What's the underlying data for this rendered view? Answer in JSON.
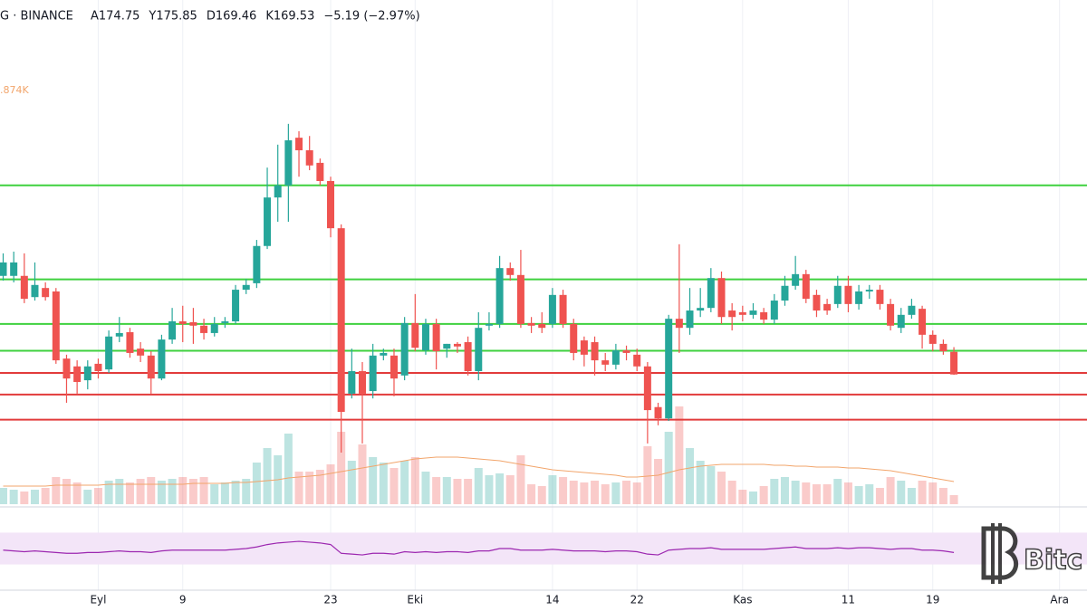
{
  "chart_data": {
    "type": "candlestick",
    "title": "G · BINANCE",
    "stats": [
      "A174.75",
      "Y175.85",
      "D169.46",
      "K169.53",
      "−5.19 (−2.97%)"
    ],
    "volume_label": ".874K",
    "watermark": "Bitc",
    "up_color": "#26a69a",
    "down_color": "#ef5350",
    "ylim": [
      140,
      256
    ],
    "xlim": [
      -0.3,
      102.6
    ],
    "xticks": [
      {
        "value": 9,
        "label": "Eyl"
      },
      {
        "value": 17,
        "label": "9"
      },
      {
        "value": 31,
        "label": "23"
      },
      {
        "value": 39,
        "label": "Eki"
      },
      {
        "value": 52,
        "label": "14"
      },
      {
        "value": 60,
        "label": "22"
      },
      {
        "value": 70,
        "label": "Kas"
      },
      {
        "value": 80,
        "label": "11"
      },
      {
        "value": 88,
        "label": "19"
      },
      {
        "value": 100,
        "label": "Ara"
      }
    ],
    "grid": true,
    "levels": [
      {
        "value": 213.2,
        "color": "#3fd13f"
      },
      {
        "value": 191.5,
        "color": "#3fd13f"
      },
      {
        "value": 181.2,
        "color": "#3fd13f"
      },
      {
        "value": 175.0,
        "color": "#3fd13f"
      },
      {
        "value": 169.9,
        "color": "#e23b3b"
      },
      {
        "value": 164.9,
        "color": "#e23b3b"
      },
      {
        "value": 159.1,
        "color": "#e23b3b"
      }
    ],
    "candles": [
      [
        192.3,
        197.5,
        191.2,
        195.4
      ],
      [
        192.3,
        197.9,
        190.8,
        195.4
      ],
      [
        192.3,
        197.5,
        186.0,
        187.0
      ],
      [
        187.4,
        195.4,
        186.6,
        190.2
      ],
      [
        189.5,
        190.8,
        186.6,
        187.4
      ],
      [
        188.7,
        189.5,
        172.0,
        172.8
      ],
      [
        173.2,
        174.1,
        163.0,
        168.6
      ],
      [
        171.4,
        172.8,
        165.1,
        167.8
      ],
      [
        168.2,
        172.8,
        166.1,
        171.4
      ],
      [
        172.0,
        173.2,
        168.6,
        170.3
      ],
      [
        170.7,
        179.7,
        169.9,
        178.3
      ],
      [
        178.3,
        182.8,
        177.0,
        179.1
      ],
      [
        179.3,
        180.3,
        173.4,
        174.5
      ],
      [
        175.5,
        177.0,
        172.4,
        173.9
      ],
      [
        173.9,
        174.9,
        165.1,
        168.6
      ],
      [
        168.6,
        178.7,
        168.2,
        177.6
      ],
      [
        177.6,
        184.9,
        176.6,
        181.8
      ],
      [
        181.8,
        185.4,
        177.0,
        181.2
      ],
      [
        181.6,
        184.9,
        176.6,
        180.8
      ],
      [
        180.8,
        182.4,
        177.6,
        179.1
      ],
      [
        179.1,
        182.8,
        178.3,
        181.2
      ],
      [
        181.4,
        182.8,
        180.3,
        181.8
      ],
      [
        181.8,
        190.2,
        181.2,
        189.1
      ],
      [
        189.1,
        191.6,
        188.1,
        190.2
      ],
      [
        190.6,
        200.6,
        189.5,
        199.2
      ],
      [
        199.2,
        217.3,
        198.5,
        210.4
      ],
      [
        210.4,
        222.6,
        204.8,
        213.2
      ],
      [
        213.2,
        227.4,
        204.8,
        223.6
      ],
      [
        224.2,
        225.7,
        215.2,
        221.3
      ],
      [
        221.3,
        224.6,
        216.7,
        217.8
      ],
      [
        218.4,
        219.4,
        213.2,
        214.2
      ],
      [
        214.2,
        215.2,
        201.2,
        203.3
      ],
      [
        203.3,
        204.2,
        151.5,
        160.9
      ],
      [
        165.1,
        175.5,
        164.0,
        170.3
      ],
      [
        170.3,
        172.4,
        153.6,
        165.1
      ],
      [
        165.7,
        176.6,
        164.0,
        173.9
      ],
      [
        173.9,
        175.5,
        172.8,
        174.5
      ],
      [
        173.9,
        175.5,
        164.5,
        168.6
      ],
      [
        169.3,
        182.8,
        168.2,
        181.4
      ],
      [
        181.4,
        188.1,
        174.9,
        175.7
      ],
      [
        175.1,
        182.4,
        174.1,
        181.2
      ],
      [
        181.2,
        182.4,
        170.7,
        174.9
      ],
      [
        175.5,
        176.6,
        173.4,
        176.6
      ],
      [
        176.6,
        177.0,
        174.5,
        176.0
      ],
      [
        177.0,
        178.3,
        169.3,
        170.3
      ],
      [
        170.3,
        183.9,
        168.2,
        180.3
      ],
      [
        180.8,
        183.9,
        179.7,
        181.2
      ],
      [
        181.2,
        196.9,
        180.3,
        194.1
      ],
      [
        194.1,
        195.4,
        191.2,
        192.5
      ],
      [
        192.5,
        198.3,
        180.3,
        181.2
      ],
      [
        181.4,
        182.8,
        179.1,
        180.8
      ],
      [
        181.2,
        183.9,
        179.1,
        180.3
      ],
      [
        181.2,
        189.5,
        180.3,
        187.9
      ],
      [
        187.9,
        189.1,
        180.3,
        181.2
      ],
      [
        181.2,
        182.4,
        172.8,
        174.5
      ],
      [
        177.4,
        178.3,
        171.4,
        174.1
      ],
      [
        177.0,
        178.3,
        169.3,
        172.8
      ],
      [
        172.8,
        174.5,
        170.3,
        171.8
      ],
      [
        171.8,
        176.6,
        170.7,
        175.1
      ],
      [
        175.1,
        176.2,
        172.8,
        174.5
      ],
      [
        174.1,
        175.5,
        170.3,
        171.4
      ],
      [
        171.4,
        172.4,
        153.6,
        161.3
      ],
      [
        162.0,
        163.0,
        157.8,
        159.4
      ],
      [
        159.4,
        183.3,
        158.8,
        182.4
      ],
      [
        182.4,
        199.6,
        174.5,
        180.3
      ],
      [
        180.3,
        189.5,
        178.7,
        184.3
      ],
      [
        184.3,
        189.5,
        182.8,
        184.9
      ],
      [
        184.9,
        194.1,
        183.9,
        191.8
      ],
      [
        191.8,
        193.3,
        181.2,
        182.8
      ],
      [
        184.3,
        186.0,
        179.7,
        182.8
      ],
      [
        183.9,
        185.4,
        181.8,
        183.3
      ],
      [
        183.3,
        186.0,
        182.4,
        184.3
      ],
      [
        183.9,
        184.9,
        181.2,
        182.2
      ],
      [
        182.2,
        188.1,
        181.2,
        186.6
      ],
      [
        186.6,
        192.3,
        185.4,
        190.0
      ],
      [
        190.0,
        196.9,
        189.1,
        192.7
      ],
      [
        192.7,
        193.7,
        186.0,
        187.0
      ],
      [
        187.9,
        189.1,
        182.8,
        184.3
      ],
      [
        185.8,
        187.0,
        183.3,
        184.3
      ],
      [
        185.8,
        192.3,
        184.9,
        190.0
      ],
      [
        190.0,
        192.3,
        183.9,
        185.8
      ],
      [
        185.8,
        190.2,
        184.5,
        188.7
      ],
      [
        188.7,
        190.2,
        187.0,
        189.1
      ],
      [
        189.1,
        190.2,
        184.5,
        185.8
      ],
      [
        185.8,
        187.0,
        179.7,
        180.8
      ],
      [
        180.3,
        184.9,
        179.1,
        183.3
      ],
      [
        183.3,
        187.0,
        182.4,
        185.4
      ],
      [
        184.7,
        185.4,
        175.5,
        178.7
      ],
      [
        178.7,
        179.7,
        174.9,
        176.6
      ],
      [
        176.6,
        177.6,
        174.1,
        174.9
      ],
      [
        174.75,
        175.85,
        169.46,
        169.53
      ]
    ],
    "vlim": [
      0,
      130
    ],
    "volume": [
      18,
      16,
      14,
      16,
      18,
      30,
      28,
      24,
      16,
      18,
      26,
      28,
      24,
      28,
      30,
      26,
      28,
      30,
      28,
      30,
      22,
      24,
      26,
      28,
      46,
      62,
      54,
      78,
      36,
      36,
      38,
      44,
      80,
      48,
      66,
      52,
      46,
      40,
      48,
      52,
      36,
      30,
      30,
      28,
      28,
      40,
      32,
      34,
      32,
      54,
      22,
      20,
      32,
      30,
      26,
      24,
      26,
      22,
      24,
      26,
      24,
      64,
      50,
      80,
      108,
      62,
      48,
      42,
      36,
      26,
      16,
      14,
      20,
      28,
      30,
      26,
      24,
      22,
      22,
      28,
      24,
      20,
      22,
      18,
      30,
      26,
      18,
      26,
      24,
      18,
      10
    ],
    "volume_ma_color": "#f2a56b",
    "volume_ma": [
      20,
      20,
      20,
      20,
      20,
      21,
      21,
      21,
      21,
      21,
      22,
      22,
      22,
      22,
      22,
      22,
      22,
      22,
      23,
      23,
      23,
      23,
      24,
      24,
      25,
      26,
      27,
      29,
      30,
      31,
      32,
      34,
      36,
      38,
      40,
      42,
      44,
      46,
      48,
      50,
      51,
      52,
      52,
      52,
      51,
      50,
      49,
      48,
      46,
      44,
      42,
      40,
      38,
      37,
      36,
      35,
      34,
      33,
      32,
      30,
      30,
      31,
      32,
      35,
      38,
      40,
      42,
      43,
      44,
      44,
      44,
      44,
      44,
      43,
      43,
      42,
      42,
      41,
      41,
      41,
      40,
      40,
      39,
      38,
      37,
      35,
      33,
      31,
      29,
      27,
      25
    ],
    "rsi_lim": [
      0,
      100
    ],
    "rsi_band": [
      30,
      70
    ],
    "rsi_color": "#9c27b0",
    "rsi": [
      48,
      47,
      46,
      47,
      46,
      45,
      44,
      44,
      45,
      45,
      46,
      47,
      46,
      46,
      45,
      47,
      48,
      48,
      48,
      48,
      48,
      48,
      49,
      50,
      52,
      55,
      57,
      58,
      59,
      58,
      57,
      55,
      44,
      43,
      42,
      44,
      44,
      43,
      46,
      45,
      46,
      45,
      46,
      46,
      45,
      47,
      47,
      50,
      50,
      48,
      48,
      48,
      49,
      48,
      47,
      47,
      47,
      46,
      47,
      47,
      46,
      43,
      42,
      48,
      49,
      50,
      50,
      51,
      49,
      49,
      49,
      49,
      49,
      50,
      51,
      52,
      50,
      50,
      50,
      51,
      50,
      51,
      51,
      50,
      49,
      50,
      50,
      48,
      48,
      47,
      45
    ]
  }
}
